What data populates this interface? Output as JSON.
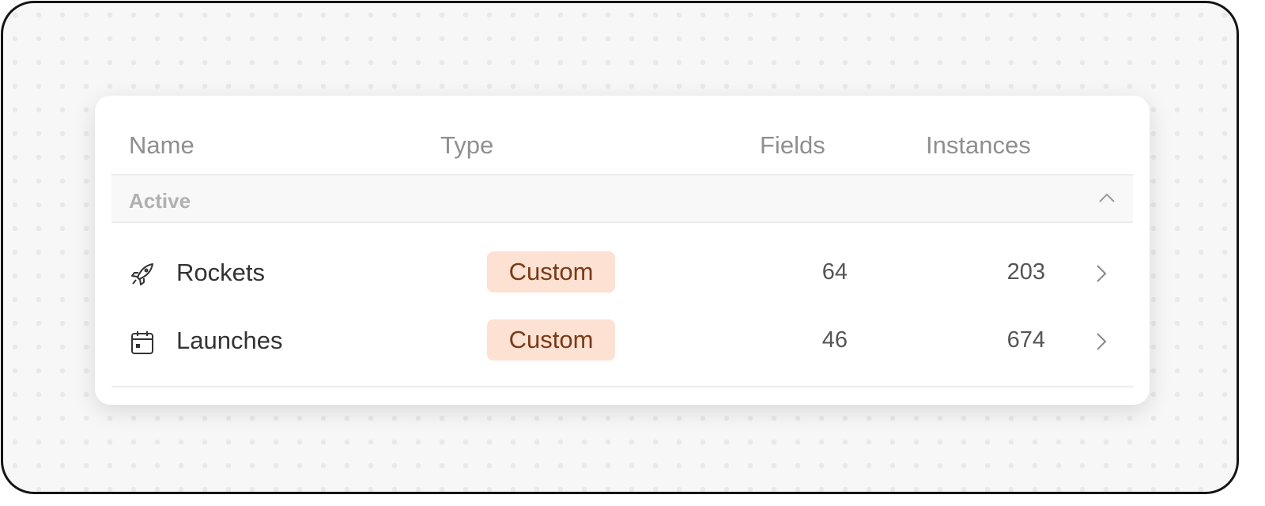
{
  "columns": {
    "name": "Name",
    "type": "Type",
    "fields": "Fields",
    "instances": "Instances"
  },
  "group": {
    "label": "Active",
    "expanded": true
  },
  "rows": [
    {
      "icon": "rocket-icon",
      "name": "Rockets",
      "type": "Custom",
      "fields": "64",
      "instances": "203"
    },
    {
      "icon": "calendar-icon",
      "name": "Launches",
      "type": "Custom",
      "fields": "46",
      "instances": "674"
    }
  ],
  "colors": {
    "badge_bg": "#fde1d3",
    "badge_text": "#7a3a16"
  }
}
